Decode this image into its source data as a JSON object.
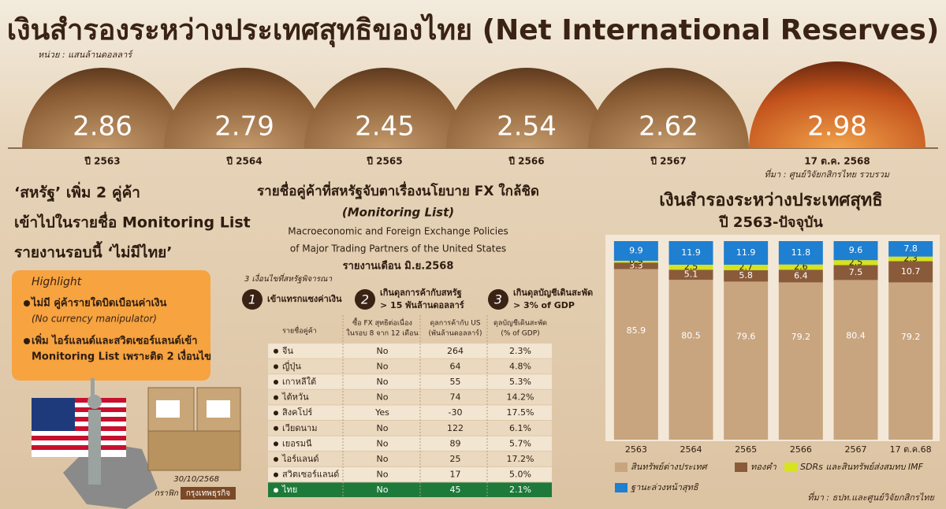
{
  "header": {
    "title": "เงินสำรองระหว่างประเทศสุทธิของไทย (Net International Reserves)",
    "unit": "หน่วย : แสนล้านดอลลาร์",
    "source": "ที่มา : ศูนย์วิจัยกสิกรไทย รวบรวม"
  },
  "reserves": {
    "categories": [
      "ปี 2563",
      "ปี 2564",
      "ปี 2565",
      "ปี 2566",
      "ปี 2567",
      "17 ต.ค. 2568"
    ],
    "values": [
      "2.86",
      "2.79",
      "2.45",
      "2.54",
      "2.62",
      "2.98"
    ]
  },
  "left": {
    "headline": [
      "‘สหรัฐ’ เพิ่ม 2 คู่ค้า",
      "เข้าไปในรายชื่อ Monitoring List",
      "รายงานรอบนี้ ‘ไม่มีไทย’"
    ],
    "highlight": {
      "title": "Highlight",
      "items": [
        {
          "lines": [
            "ไม่มี คู่ค้ารายใดบิดเบือนค่าเงิน"
          ],
          "note": "(No currency manipulator)"
        },
        {
          "lines": [
            "เพิ่ม ไอร์แลนด์และสวิตเซอร์แลนด์เข้า",
            "Monitoring List เพราะติด 2 เงื่อนไข"
          ]
        }
      ]
    },
    "date": "30/10/2568",
    "credit": [
      "กราฟิก",
      "กรุงเทพธุรกิจ"
    ]
  },
  "table": {
    "title": "รายชื่อคู่ค้าที่สหรัฐจับตาเรื่องนโยบาย FX ใกล้ชิด",
    "subtitle": "(Monitoring List)",
    "description": [
      "Macroeconomic and Foreign Exchange Policies",
      "of Major Trading Partners of the United States"
    ],
    "report": "รายงานเดือน มิ.ย.2568",
    "criteria_title": "3 เงื่อนไขที่สหรัฐพิจารณา",
    "criteria": [
      {
        "number": "1",
        "lines": [
          "เข้าแทรกแซงค่าเงิน"
        ]
      },
      {
        "number": "2",
        "lines": [
          "เกินดุลการค้ากับสหรัฐ",
          "> 15 พันล้านดอลลาร์"
        ]
      },
      {
        "number": "3",
        "lines": [
          "เกินดุลบัญชีเดินสะพัด",
          "> 3% of GDP"
        ]
      }
    ],
    "columns": [
      [
        "รายชื่อคู่ค้า"
      ],
      [
        "ซื้อ FX สุทธิต่อเนื่อง",
        "ในรอบ 8 จาก 12 เดือน"
      ],
      [
        "ดุลการค้ากับ US",
        "(พันล้านดอลลาร์)"
      ],
      [
        "ดุลบัญชีเดินสะพัด",
        "(% of GDP)"
      ]
    ],
    "rows": [
      [
        "จีน",
        "No",
        "264",
        "2.3%"
      ],
      [
        "ญี่ปุ่น",
        "No",
        "64",
        "4.8%"
      ],
      [
        "เกาหลีใต้",
        "No",
        "55",
        "5.3%"
      ],
      [
        "ไต้หวัน",
        "No",
        "74",
        "14.2%"
      ],
      [
        "สิงคโปร์",
        "Yes",
        "-30",
        "17.5%"
      ],
      [
        "เวียดนาม",
        "No",
        "122",
        "6.1%"
      ],
      [
        "เยอรมนี",
        "No",
        "89",
        "5.7%"
      ],
      [
        "ไอร์แลนด์",
        "No",
        "25",
        "17.2%"
      ],
      [
        "สวิตเซอร์แลนด์",
        "No",
        "17",
        "5.0%"
      ],
      [
        "ไทย",
        "No",
        "45",
        "2.1%"
      ]
    ]
  },
  "chart_data": {
    "type": "bar",
    "stacked": true,
    "title": "เงินสำรองระหว่างประเทศสุทธิ",
    "subtitle": "ปี 2563-ปัจจุบัน",
    "categories": [
      "2563",
      "2564",
      "2565",
      "2566",
      "2567",
      "17 ต.ค.68"
    ],
    "series": [
      {
        "name": "สินทรัพย์ต่างประเทศ",
        "color": "#c8a57f",
        "values": [
          85.9,
          80.5,
          79.6,
          79.2,
          80.4,
          79.2
        ]
      },
      {
        "name": "ทองคำ",
        "color": "#8a5b3a",
        "values": [
          3.3,
          5.1,
          5.8,
          6.4,
          7.5,
          10.7
        ]
      },
      {
        "name": "SDRs และสินทรัพย์ส่งสมทบ IMF",
        "color": "#d6e31e",
        "values": [
          0.9,
          2.5,
          2.7,
          2.6,
          2.5,
          2.3
        ]
      },
      {
        "name": "ฐานะล่วงหน้าสุทธิ",
        "color": "#1f7fd0",
        "values": [
          9.9,
          11.9,
          11.9,
          11.8,
          9.6,
          7.8
        ]
      }
    ],
    "ylim": [
      0,
      100
    ],
    "source": "ที่มา : ธปท.และศูนย์วิจัยกสิกรไทย"
  }
}
